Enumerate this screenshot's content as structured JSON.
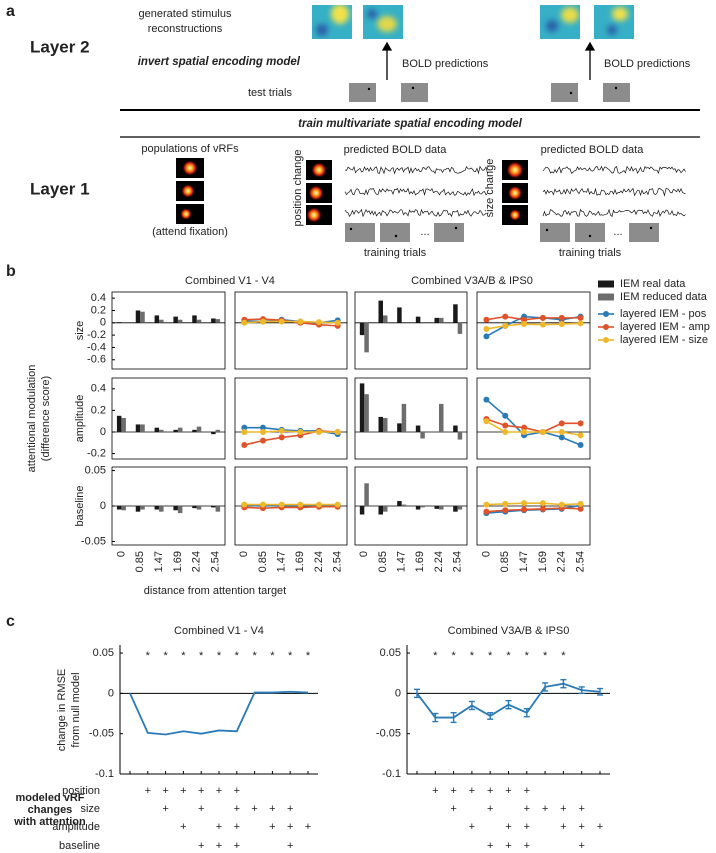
{
  "panel_a": {
    "label": "a",
    "layer2": "Layer 2",
    "reconstructions": [
      "generated stimulus",
      "reconstructions"
    ],
    "invert": "invert spatial encoding model",
    "bold_predictions": [
      "BOLD predictions",
      "BOLD predictions"
    ],
    "test_trials": "test trials",
    "train": "train multivariate spatial encoding model",
    "layer1": "Layer 1",
    "populations": "populations of vRFs",
    "attend": "(attend fixation)",
    "conditions": [
      {
        "name": "position change",
        "predicted": "predicted BOLD data",
        "ellipsis": "...",
        "training": "training trials"
      },
      {
        "name": "size change",
        "predicted": "predicted BOLD data",
        "ellipsis": "...",
        "training": "training trials"
      }
    ]
  },
  "chart_data": [
    {
      "type": "small-multiples",
      "label": "b",
      "column_titles": [
        "Combined V1 - V4",
        "Combined V3A/B & IPS0"
      ],
      "ylabel": [
        "attentional modulation",
        "(difference score)"
      ],
      "xlabel": "distance from attention target",
      "categories": [
        "0",
        "0.85",
        "1.47",
        "1.69",
        "2.24",
        "2.54"
      ],
      "bar_series": [
        {
          "name": "IEM real data",
          "color": "#1a1a1a"
        },
        {
          "name": "IEM reduced data",
          "color": "#6d6d6d"
        }
      ],
      "line_series": [
        {
          "name": "layered IEM - pos",
          "color": "#2a7ab8"
        },
        {
          "name": "layered IEM - amp",
          "color": "#e0522a"
        },
        {
          "name": "layered IEM - size",
          "color": "#efb82a"
        }
      ],
      "rows": [
        {
          "ylabel": "size",
          "ylim": [
            -0.75,
            0.5
          ],
          "yticks": [
            0.4,
            0.2,
            0,
            -0.2,
            -0.4,
            -0.6
          ],
          "cells": [
            {
              "kind": "bar",
              "series": [
                {
                  "values": [
                    0.01,
                    0.2,
                    0.12,
                    0.1,
                    0.12,
                    0.07
                  ]
                },
                {
                  "values": [
                    0.0,
                    0.18,
                    0.05,
                    0.05,
                    0.05,
                    0.06
                  ]
                }
              ]
            },
            {
              "kind": "line",
              "series": [
                {
                  "values": [
                    0.03,
                    0.02,
                    0.05,
                    0.02,
                    0.0,
                    0.04
                  ]
                },
                {
                  "values": [
                    0.05,
                    0.06,
                    0.04,
                    0.0,
                    -0.03,
                    -0.05
                  ]
                },
                {
                  "values": [
                    0.0,
                    0.02,
                    0.02,
                    0.02,
                    0.01,
                    0.0
                  ]
                }
              ]
            },
            {
              "kind": "bar",
              "series": [
                {
                  "values": [
                    -0.2,
                    0.36,
                    0.25,
                    0.1,
                    0.08,
                    0.3
                  ]
                },
                {
                  "values": [
                    -0.48,
                    0.12,
                    0.0,
                    0.0,
                    0.08,
                    -0.18
                  ]
                }
              ]
            },
            {
              "kind": "line",
              "series": [
                {
                  "values": [
                    -0.22,
                    -0.05,
                    0.1,
                    0.08,
                    0.05,
                    0.1
                  ]
                },
                {
                  "values": [
                    0.05,
                    0.1,
                    0.05,
                    0.08,
                    0.08,
                    0.08
                  ]
                },
                {
                  "values": [
                    -0.1,
                    -0.05,
                    -0.02,
                    -0.03,
                    -0.02,
                    -0.01
                  ]
                }
              ]
            }
          ]
        },
        {
          "ylabel": "amplitude",
          "ylim": [
            -0.25,
            0.5
          ],
          "yticks": [
            0.4,
            0.2,
            0,
            -0.2
          ],
          "cells": [
            {
              "kind": "bar",
              "series": [
                {
                  "values": [
                    0.15,
                    0.07,
                    0.04,
                    0.02,
                    0.02,
                    -0.02
                  ]
                },
                {
                  "values": [
                    0.13,
                    0.07,
                    0.02,
                    0.04,
                    0.05,
                    0.02
                  ]
                }
              ]
            },
            {
              "kind": "line",
              "series": [
                {
                  "values": [
                    0.04,
                    0.04,
                    0.02,
                    0.01,
                    0.01,
                    -0.02
                  ]
                },
                {
                  "values": [
                    -0.12,
                    -0.08,
                    -0.05,
                    -0.03,
                    0.01,
                    0.0
                  ]
                },
                {
                  "values": [
                    0.0,
                    0.0,
                    0.01,
                    0.0,
                    0.0,
                    0.0
                  ]
                }
              ]
            },
            {
              "kind": "bar",
              "series": [
                {
                  "values": [
                    0.45,
                    0.14,
                    0.08,
                    0.06,
                    0.0,
                    0.06
                  ]
                },
                {
                  "values": [
                    0.35,
                    0.13,
                    0.26,
                    -0.06,
                    0.26,
                    -0.07
                  ]
                }
              ]
            },
            {
              "kind": "line",
              "series": [
                {
                  "values": [
                    0.3,
                    0.15,
                    -0.03,
                    0.0,
                    -0.05,
                    -0.12
                  ]
                },
                {
                  "values": [
                    0.12,
                    0.06,
                    0.04,
                    0.0,
                    0.08,
                    0.08
                  ]
                },
                {
                  "values": [
                    0.1,
                    0.0,
                    0.0,
                    0.0,
                    0.0,
                    -0.03
                  ]
                }
              ]
            }
          ]
        },
        {
          "ylabel": "baseline",
          "ylim": [
            -0.055,
            0.055
          ],
          "yticks": [
            0.05,
            0,
            -0.05
          ],
          "cells": [
            {
              "kind": "bar",
              "series": [
                {
                  "values": [
                    -0.005,
                    -0.008,
                    -0.005,
                    -0.006,
                    -0.003,
                    -0.002
                  ]
                },
                {
                  "values": [
                    -0.006,
                    -0.005,
                    -0.008,
                    -0.01,
                    -0.005,
                    -0.008
                  ]
                }
              ]
            },
            {
              "kind": "line",
              "series": [
                {
                  "values": [
                    0.001,
                    0.0,
                    0.001,
                    0.001,
                    0.001,
                    0.001
                  ]
                },
                {
                  "values": [
                    -0.002,
                    -0.003,
                    -0.002,
                    -0.002,
                    -0.001,
                    -0.001
                  ]
                },
                {
                  "values": [
                    0.002,
                    0.002,
                    0.002,
                    0.002,
                    0.002,
                    0.002
                  ]
                }
              ]
            },
            {
              "kind": "bar",
              "series": [
                {
                  "values": [
                    -0.012,
                    -0.012,
                    0.007,
                    -0.005,
                    -0.004,
                    -0.008
                  ]
                },
                {
                  "values": [
                    0.032,
                    -0.008,
                    0.002,
                    -0.002,
                    -0.005,
                    -0.005
                  ]
                }
              ]
            },
            {
              "kind": "line",
              "series": [
                {
                  "values": [
                    -0.01,
                    -0.008,
                    -0.006,
                    -0.005,
                    -0.004,
                    0.001
                  ]
                },
                {
                  "values": [
                    -0.008,
                    -0.006,
                    -0.005,
                    -0.004,
                    -0.003,
                    -0.004
                  ]
                },
                {
                  "values": [
                    0.002,
                    0.003,
                    0.004,
                    0.004,
                    0.002,
                    0.003
                  ]
                }
              ]
            }
          ]
        }
      ]
    },
    {
      "type": "line-panels",
      "label": "c",
      "color": "#2a7ab8",
      "ylabel": [
        "change in RMSE",
        "from null model"
      ],
      "ylim": [
        -0.1,
        0.06
      ],
      "yticks": [
        0.05,
        0,
        -0.05,
        -0.1
      ],
      "table_title": [
        "modeled vRF",
        "changes",
        "with attention"
      ],
      "table_rows": [
        "position",
        "size",
        "amplitude",
        "baseline"
      ],
      "charts": [
        {
          "title": "Combined V1 - V4",
          "values": [
            0,
            -0.049,
            -0.051,
            -0.047,
            -0.05,
            -0.046,
            -0.047,
            0.001,
            0.001,
            0.002,
            0.001
          ],
          "markers": [
            null,
            "*",
            "*",
            "*",
            "*",
            "*",
            "*",
            "*",
            "*",
            "*",
            "*"
          ],
          "marker_colors": [
            null,
            "#222222",
            "#222222",
            "#222222",
            "#222222",
            "#222222",
            "#222222",
            "#999999",
            "#999999",
            "#999999",
            "#999999"
          ],
          "table": [
            [
              null,
              "+",
              "+",
              "+",
              "+",
              "+",
              "+",
              null,
              null,
              null,
              null
            ],
            [
              null,
              null,
              "+",
              null,
              "+",
              null,
              "+",
              "+",
              "+",
              "+",
              null
            ],
            [
              null,
              null,
              null,
              "+",
              null,
              "+",
              "+",
              null,
              "+",
              "+",
              "+"
            ],
            [
              null,
              null,
              null,
              null,
              "+",
              "+",
              "+",
              null,
              null,
              "+",
              null
            ]
          ]
        },
        {
          "title": "Combined V3A/B & IPS0",
          "values": [
            0,
            -0.03,
            -0.03,
            -0.015,
            -0.028,
            -0.014,
            -0.024,
            0.008,
            0.012,
            0.004,
            0.002
          ],
          "errors": [
            0.005,
            0.005,
            0.006,
            0.005,
            0.004,
            0.005,
            0.005,
            0.005,
            0.005,
            0.004,
            0.004
          ],
          "markers": [
            null,
            "*",
            "*",
            "*",
            "*",
            "*",
            "*",
            "*",
            "*",
            null,
            null
          ],
          "marker_colors": [
            null,
            "#222222",
            "#222222",
            "#222222",
            "#222222",
            "#222222",
            "#222222",
            "#999999",
            "#999999",
            null,
            null
          ],
          "table": [
            [
              null,
              "+",
              "+",
              "+",
              "+",
              "+",
              "+",
              null,
              null,
              null,
              null
            ],
            [
              null,
              null,
              "+",
              null,
              "+",
              null,
              "+",
              "+",
              "+",
              "+",
              null
            ],
            [
              null,
              null,
              null,
              "+",
              null,
              "+",
              "+",
              null,
              "+",
              "+",
              "+"
            ],
            [
              null,
              null,
              null,
              null,
              "+",
              "+",
              "+",
              null,
              null,
              "+",
              null
            ]
          ]
        }
      ]
    }
  ]
}
